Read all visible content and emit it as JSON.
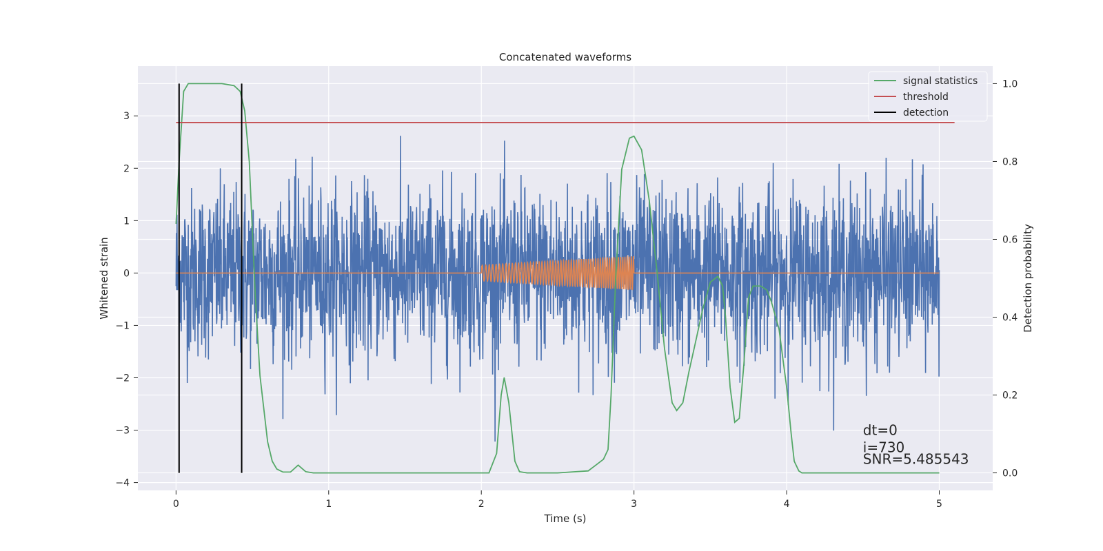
{
  "chart_data": {
    "type": "line",
    "title": "Concatenated waveforms",
    "xlabel": "Time (s)",
    "ylabel": "Whitened strain",
    "y2label": "Detection probability",
    "xlim": [
      -0.25,
      5.35
    ],
    "ylim": [
      -4.15,
      3.95
    ],
    "y2lim": [
      -0.045,
      1.045
    ],
    "x_ticks": [
      0,
      1,
      2,
      3,
      4,
      5
    ],
    "y_ticks": [
      -4,
      -3,
      -2,
      -1,
      0,
      1,
      2,
      3
    ],
    "y2_ticks": [
      0.0,
      0.2,
      0.4,
      0.6,
      0.8,
      1.0
    ],
    "x_tick_labels": [
      "0",
      "1",
      "2",
      "3",
      "4",
      "5"
    ],
    "y_tick_labels": [
      "−4",
      "−3",
      "−2",
      "−1",
      "0",
      "1",
      "2",
      "3"
    ],
    "y2_tick_labels": [
      "0.0",
      "0.2",
      "0.4",
      "0.6",
      "0.8",
      "1.0"
    ],
    "grid": true,
    "legend_position": "top-right",
    "colors": {
      "plot_bg": "#eaeaf2",
      "grid": "#ffffff",
      "noise": "#4c72b0",
      "waveform": "#dd8452",
      "signal_statistics": "#55a868",
      "threshold": "#c44e52",
      "detection": "#000000"
    },
    "legend": [
      {
        "label": "signal statistics",
        "color": "#55a868"
      },
      {
        "label": "threshold",
        "color": "#c44e52"
      },
      {
        "label": "detection",
        "color": "#000000"
      }
    ],
    "noise": {
      "x_range": [
        0,
        5
      ],
      "amplitude_std": 0.8,
      "clip": [
        -3.8,
        3.6
      ],
      "label": ""
    },
    "waveform": {
      "x_range": [
        2,
        3
      ],
      "amplitude_start": 0.15,
      "amplitude_end": 0.32,
      "cycles": 50,
      "baseline": 0
    },
    "threshold": {
      "x": [
        0,
        5.1
      ],
      "value": 0.9
    },
    "detections": [
      0.02,
      0.43
    ],
    "signal_statistics": {
      "x": [
        0,
        0.02,
        0.05,
        0.08,
        0.1,
        0.2,
        0.3,
        0.38,
        0.42,
        0.45,
        0.48,
        0.5,
        0.52,
        0.55,
        0.6,
        0.63,
        0.66,
        0.7,
        0.75,
        0.8,
        0.85,
        0.9,
        1.0,
        1.5,
        1.95,
        2.05,
        2.1,
        2.13,
        2.15,
        2.18,
        2.22,
        2.25,
        2.3,
        2.5,
        2.7,
        2.75,
        2.8,
        2.83,
        2.85,
        2.88,
        2.92,
        2.97,
        3.0,
        3.05,
        3.1,
        3.15,
        3.2,
        3.25,
        3.28,
        3.32,
        3.36,
        3.4,
        3.45,
        3.5,
        3.55,
        3.58,
        3.6,
        3.63,
        3.66,
        3.69,
        3.72,
        3.75,
        3.78,
        3.8,
        3.83,
        3.87,
        3.9,
        3.95,
        3.98,
        4.0,
        4.03,
        4.05,
        4.08,
        4.1,
        4.15,
        4.3,
        4.6,
        5.0
      ],
      "values": [
        0.64,
        0.8,
        0.98,
        1.0,
        1.0,
        1.0,
        1.0,
        0.995,
        0.98,
        0.93,
        0.8,
        0.62,
        0.45,
        0.25,
        0.08,
        0.03,
        0.01,
        0.002,
        0.002,
        0.02,
        0.003,
        0.0,
        0.0,
        0.0,
        0.0,
        0.0,
        0.05,
        0.2,
        0.245,
        0.18,
        0.03,
        0.003,
        0.0,
        0.0,
        0.005,
        0.02,
        0.035,
        0.06,
        0.2,
        0.5,
        0.78,
        0.86,
        0.865,
        0.83,
        0.7,
        0.52,
        0.32,
        0.18,
        0.16,
        0.18,
        0.26,
        0.33,
        0.42,
        0.49,
        0.505,
        0.48,
        0.4,
        0.22,
        0.13,
        0.14,
        0.28,
        0.45,
        0.48,
        0.48,
        0.48,
        0.47,
        0.44,
        0.37,
        0.28,
        0.22,
        0.1,
        0.03,
        0.005,
        0.0,
        0.0,
        0.0,
        0.0,
        0.0
      ]
    },
    "annotations": [
      "dt=0",
      "i=730",
      "SNR=5.485543"
    ],
    "annotation_x": 4.5,
    "annotation_y": [
      -3.0,
      -3.33,
      -3.55
    ]
  }
}
